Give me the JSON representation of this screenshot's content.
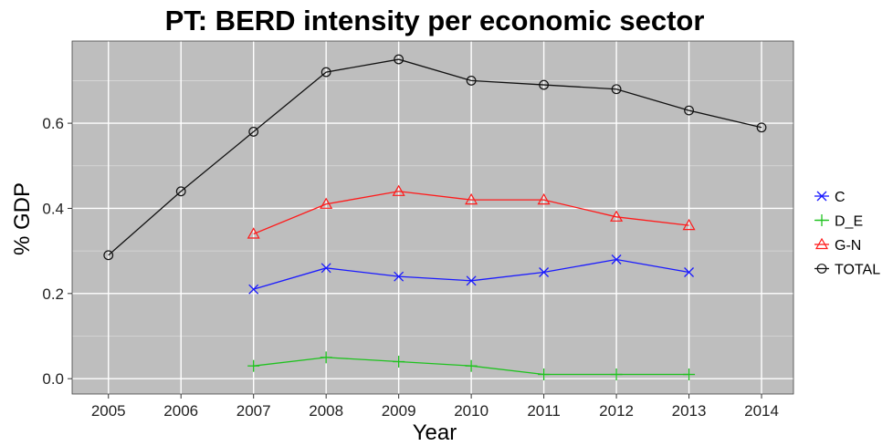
{
  "chart_data": {
    "type": "line",
    "title": "PT: BERD intensity per economic sector",
    "xlabel": "Year",
    "ylabel": "% GDP",
    "x": [
      2005,
      2006,
      2007,
      2008,
      2009,
      2010,
      2011,
      2012,
      2013,
      2014
    ],
    "x_tick_labels": [
      "2005",
      "2006",
      "2007",
      "2008",
      "2009",
      "2010",
      "2011",
      "2012",
      "2013",
      "2014"
    ],
    "y_ticks": [
      0.0,
      0.2,
      0.4,
      0.6
    ],
    "y_tick_labels": [
      "0.0",
      "0.2",
      "0.4",
      "0.6"
    ],
    "ylim": [
      -0.036,
      0.793
    ],
    "xlim": [
      2004.5,
      2014.44
    ],
    "grid": true,
    "legend_position": "right",
    "series": [
      {
        "name": "C",
        "color": "#1a1aff",
        "marker": "x",
        "x": [
          2007,
          2008,
          2009,
          2010,
          2011,
          2012,
          2013
        ],
        "values": [
          0.21,
          0.26,
          0.24,
          0.23,
          0.25,
          0.28,
          0.25
        ]
      },
      {
        "name": "D_E",
        "color": "#1fc21f",
        "marker": "plus",
        "x": [
          2007,
          2008,
          2009,
          2010,
          2011,
          2012,
          2013
        ],
        "values": [
          0.03,
          0.05,
          0.04,
          0.03,
          0.01,
          0.01,
          0.01
        ]
      },
      {
        "name": "G-N",
        "color": "#ff1a1a",
        "marker": "triangle",
        "x": [
          2007,
          2008,
          2009,
          2010,
          2011,
          2012,
          2013
        ],
        "values": [
          0.34,
          0.41,
          0.44,
          0.42,
          0.42,
          0.38,
          0.36
        ]
      },
      {
        "name": "TOTAL",
        "color": "#111111",
        "marker": "circle",
        "x": [
          2005,
          2006,
          2007,
          2008,
          2009,
          2010,
          2011,
          2012,
          2013,
          2014
        ],
        "values": [
          0.29,
          0.44,
          0.58,
          0.72,
          0.75,
          0.7,
          0.69,
          0.68,
          0.63,
          0.59
        ]
      }
    ],
    "colors": {
      "panel": "#bebebe",
      "grid_major": "#ffffff",
      "grid_minor": "#d9d9d9"
    }
  }
}
